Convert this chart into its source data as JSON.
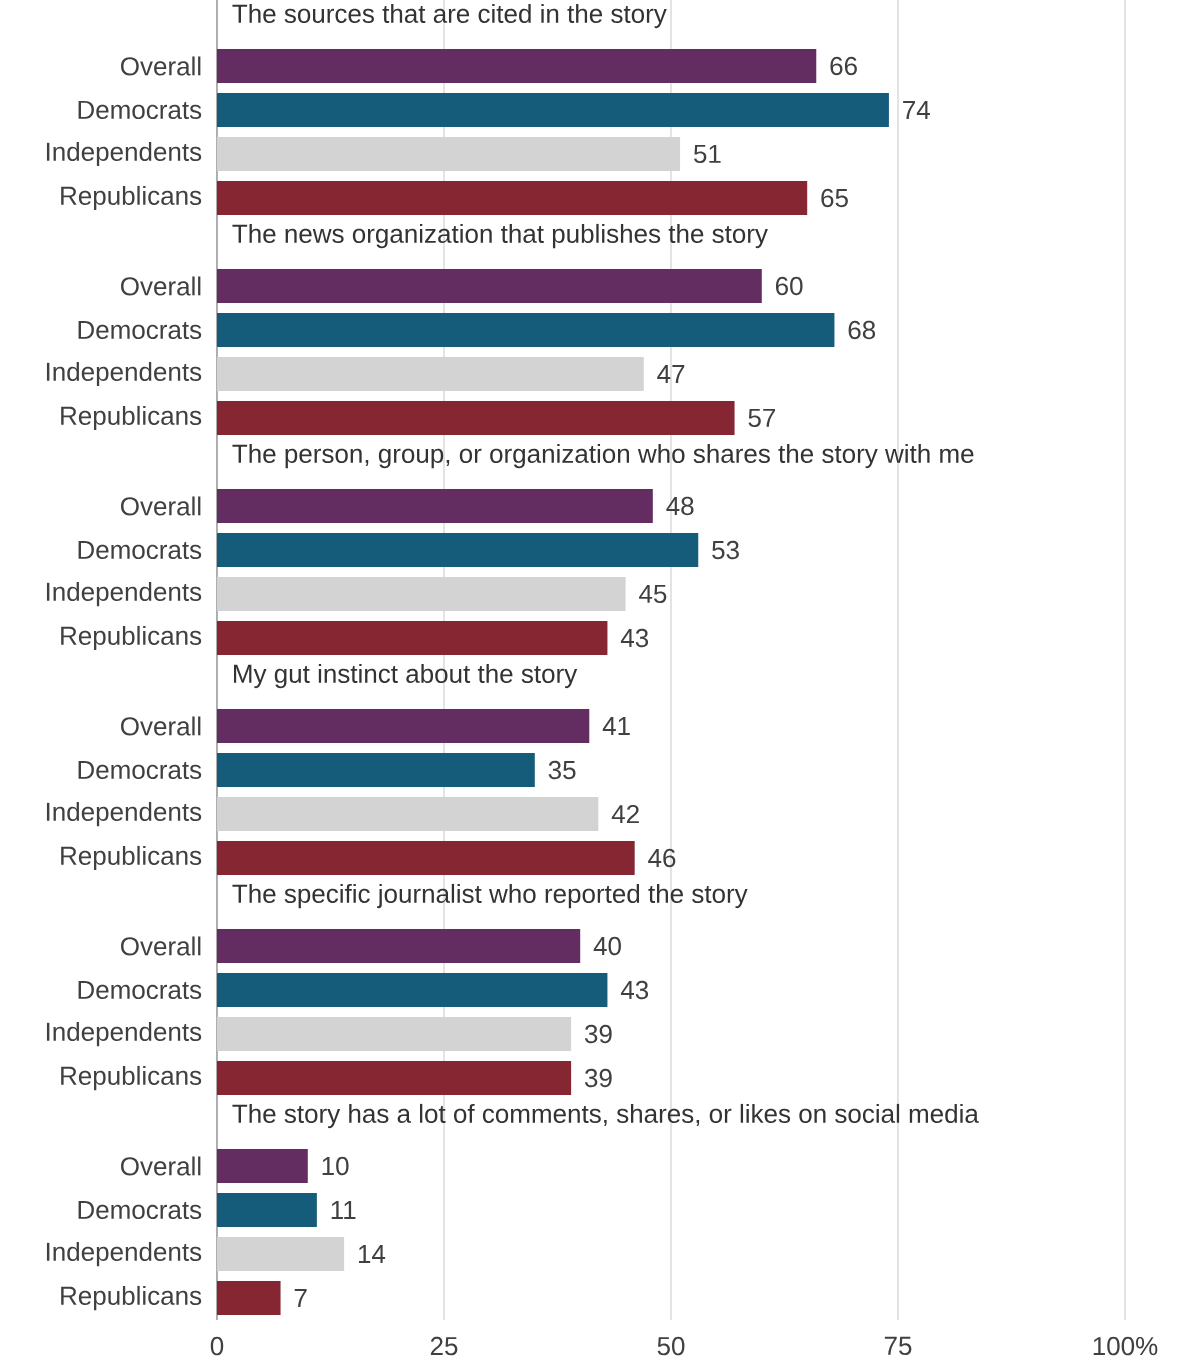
{
  "chart_data": [
    {
      "type": "bar",
      "orientation": "horizontal",
      "title": "The sources that are cited in the story",
      "categories": [
        "Overall",
        "Democrats",
        "Independents",
        "Republicans"
      ],
      "values": [
        66,
        74,
        51,
        65
      ],
      "colors": [
        "#642d62",
        "#155c7b",
        "#d3d3d3",
        "#862633"
      ],
      "xlim": [
        0,
        100
      ],
      "xticks": [
        0,
        25,
        50,
        75,
        100
      ],
      "grid": "x",
      "data_labels": true,
      "tick_labels": "y"
    },
    {
      "type": "bar",
      "orientation": "horizontal",
      "title": "The news organization that publishes the story",
      "categories": [
        "Overall",
        "Democrats",
        "Independents",
        "Republicans"
      ],
      "values": [
        60,
        68,
        47,
        57
      ],
      "colors": [
        "#642d62",
        "#155c7b",
        "#d3d3d3",
        "#862633"
      ],
      "xlim": [
        0,
        100
      ],
      "xticks": [
        0,
        25,
        50,
        75,
        100
      ],
      "grid": "x",
      "data_labels": true,
      "tick_labels": "y"
    },
    {
      "type": "bar",
      "orientation": "horizontal",
      "title": "The person, group, or organization who shares the story with me",
      "categories": [
        "Overall",
        "Democrats",
        "Independents",
        "Republicans"
      ],
      "values": [
        48,
        53,
        45,
        43
      ],
      "colors": [
        "#642d62",
        "#155c7b",
        "#d3d3d3",
        "#862633"
      ],
      "xlim": [
        0,
        100
      ],
      "xticks": [
        0,
        25,
        50,
        75,
        100
      ],
      "grid": "x",
      "data_labels": true,
      "tick_labels": "y"
    },
    {
      "type": "bar",
      "orientation": "horizontal",
      "title": "My gut instinct about the story",
      "categories": [
        "Overall",
        "Democrats",
        "Independents",
        "Republicans"
      ],
      "values": [
        41,
        35,
        42,
        46
      ],
      "colors": [
        "#642d62",
        "#155c7b",
        "#d3d3d3",
        "#862633"
      ],
      "xlim": [
        0,
        100
      ],
      "xticks": [
        0,
        25,
        50,
        75,
        100
      ],
      "grid": "x",
      "data_labels": true,
      "tick_labels": "y"
    },
    {
      "type": "bar",
      "orientation": "horizontal",
      "title": "The specific journalist who reported the story",
      "categories": [
        "Overall",
        "Democrats",
        "Independents",
        "Republicans"
      ],
      "values": [
        40,
        43,
        39,
        39
      ],
      "colors": [
        "#642d62",
        "#155c7b",
        "#d3d3d3",
        "#862633"
      ],
      "xlim": [
        0,
        100
      ],
      "xticks": [
        0,
        25,
        50,
        75,
        100
      ],
      "grid": "x",
      "data_labels": true,
      "tick_labels": "y"
    },
    {
      "type": "bar",
      "orientation": "horizontal",
      "title": "The story has a lot of comments, shares, or likes on social media",
      "categories": [
        "Overall",
        "Democrats",
        "Independents",
        "Republicans"
      ],
      "values": [
        10,
        11,
        14,
        7
      ],
      "colors": [
        "#642d62",
        "#155c7b",
        "#d3d3d3",
        "#862633"
      ],
      "xlim": [
        0,
        100
      ],
      "xticks": [
        0,
        25,
        50,
        75,
        {
          "value": 100,
          "label": "100%"
        }
      ],
      "grid": "x",
      "data_labels": true
    }
  ]
}
